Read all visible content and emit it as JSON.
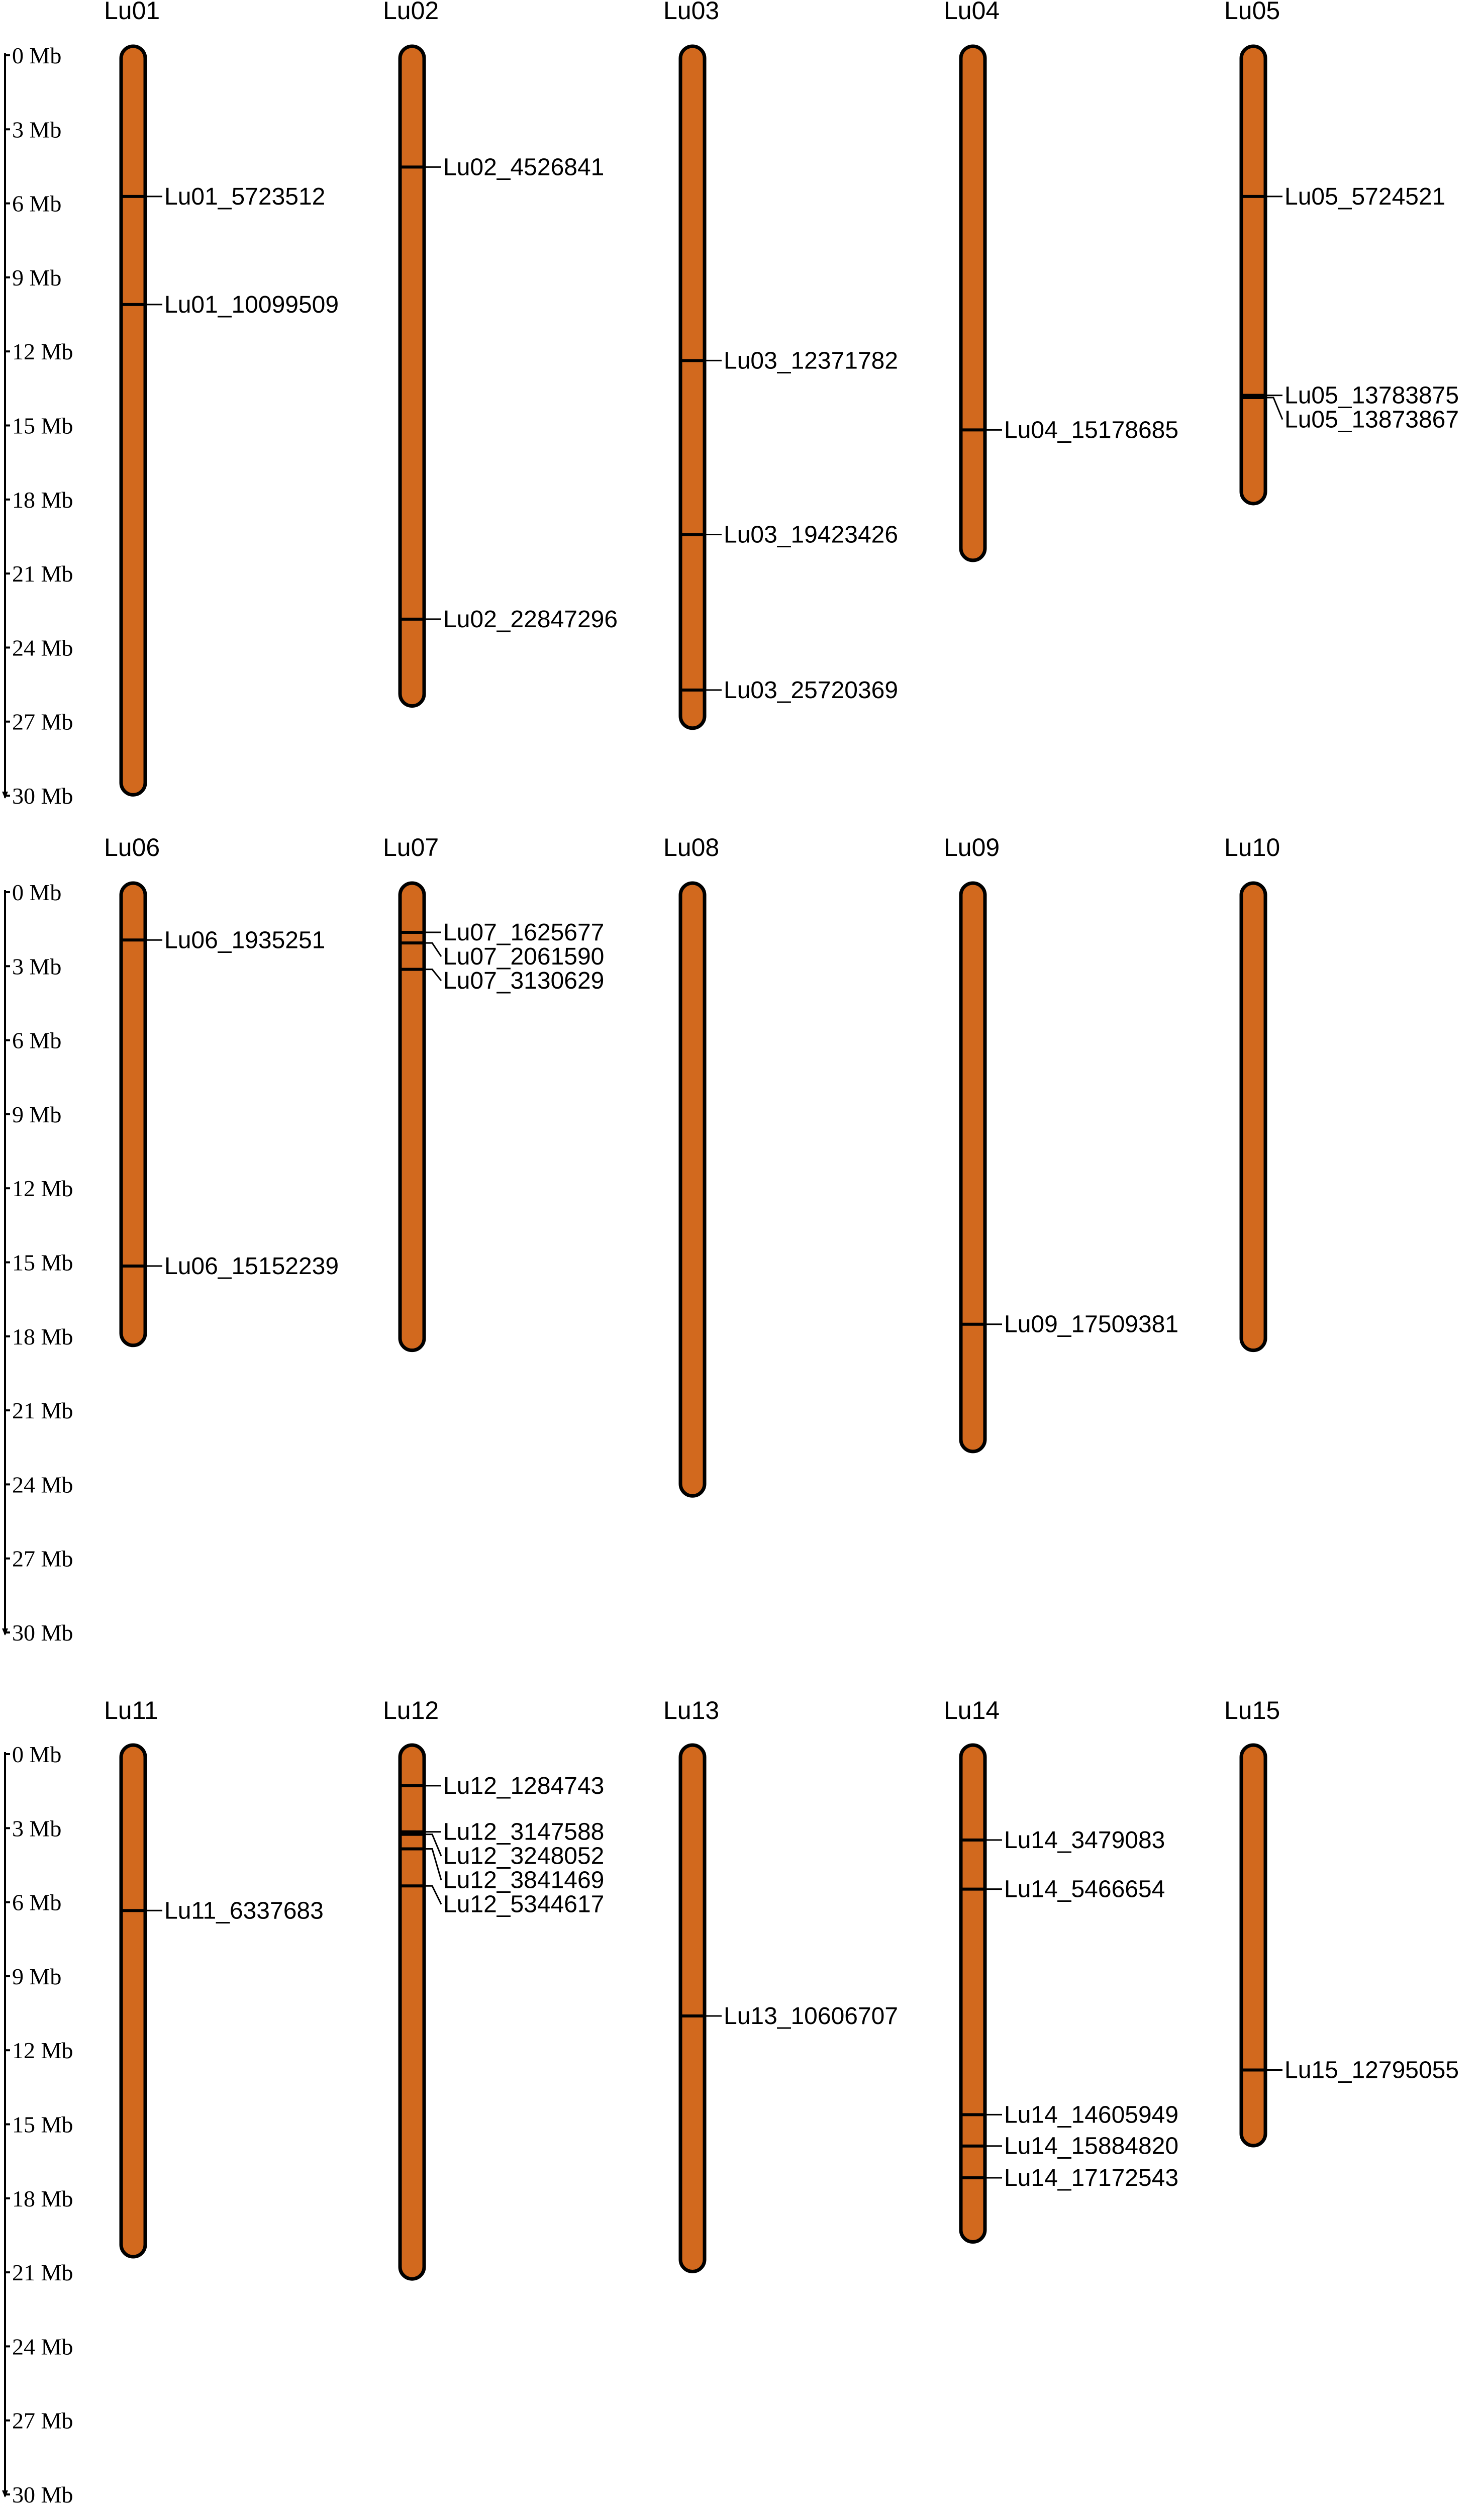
{
  "colors": {
    "chromosome_fill": "#D2691E",
    "outline": "#000000",
    "background": "#ffffff"
  },
  "axis": {
    "unit": "Mb",
    "max_mb": 30,
    "ticks_mb": [
      0,
      3,
      6,
      9,
      12,
      15,
      18,
      21,
      24,
      27,
      30
    ],
    "tick_labels": [
      "0 Mb",
      "3 Mb",
      "6 Mb",
      "9 Mb",
      "12 Mb",
      "15 Mb",
      "18 Mb",
      "21 Mb",
      "24 Mb",
      "27 Mb",
      "30 Mb"
    ]
  },
  "rows": [
    {
      "chromosomes": [
        {
          "name": "Lu01",
          "length_mb": 29.6,
          "genes": [
            {
              "label": "Lu01_5723512",
              "pos_mb": 5.72
            },
            {
              "label": "Lu01_10099509",
              "pos_mb": 10.1
            }
          ]
        },
        {
          "name": "Lu02",
          "length_mb": 26.0,
          "genes": [
            {
              "label": "Lu02_4526841",
              "pos_mb": 4.53
            },
            {
              "label": "Lu02_22847296",
              "pos_mb": 22.85
            }
          ]
        },
        {
          "name": "Lu03",
          "length_mb": 26.9,
          "genes": [
            {
              "label": "Lu03_12371782",
              "pos_mb": 12.37
            },
            {
              "label": "Lu03_19423426",
              "pos_mb": 19.42
            },
            {
              "label": "Lu03_25720369",
              "pos_mb": 25.72
            }
          ]
        },
        {
          "name": "Lu04",
          "length_mb": 20.1,
          "genes": [
            {
              "label": "Lu04_15178685",
              "pos_mb": 15.18
            }
          ]
        },
        {
          "name": "Lu05",
          "length_mb": 17.8,
          "genes": [
            {
              "label": "Lu05_5724521",
              "pos_mb": 5.72
            },
            {
              "label": "Lu05_13783875",
              "pos_mb": 13.78
            },
            {
              "label": "Lu05_13873867",
              "pos_mb": 13.87
            }
          ]
        }
      ]
    },
    {
      "chromosomes": [
        {
          "name": "Lu06",
          "length_mb": 18.0,
          "genes": [
            {
              "label": "Lu06_1935251",
              "pos_mb": 1.94
            },
            {
              "label": "Lu06_15152239",
              "pos_mb": 15.15
            }
          ]
        },
        {
          "name": "Lu07",
          "length_mb": 18.2,
          "genes": [
            {
              "label": "Lu07_1625677",
              "pos_mb": 1.63
            },
            {
              "label": "Lu07_2061590",
              "pos_mb": 2.06
            },
            {
              "label": "Lu07_3130629",
              "pos_mb": 3.13
            }
          ]
        },
        {
          "name": "Lu08",
          "length_mb": 24.1,
          "genes": []
        },
        {
          "name": "Lu09",
          "length_mb": 22.3,
          "genes": [
            {
              "label": "Lu09_17509381",
              "pos_mb": 17.51
            }
          ]
        },
        {
          "name": "Lu10",
          "length_mb": 18.2,
          "genes": []
        }
      ]
    },
    {
      "chromosomes": [
        {
          "name": "Lu11",
          "length_mb": 20.0,
          "genes": [
            {
              "label": "Lu11_6337683",
              "pos_mb": 6.34
            }
          ]
        },
        {
          "name": "Lu12",
          "length_mb": 20.9,
          "genes": [
            {
              "label": "Lu12_1284743",
              "pos_mb": 1.28
            },
            {
              "label": "Lu12_3147588",
              "pos_mb": 3.15
            },
            {
              "label": "Lu12_3248052",
              "pos_mb": 3.25
            },
            {
              "label": "Lu12_3841469",
              "pos_mb": 3.84
            },
            {
              "label": "Lu12_5344617",
              "pos_mb": 5.34
            }
          ]
        },
        {
          "name": "Lu13",
          "length_mb": 20.6,
          "genes": [
            {
              "label": "Lu13_10606707",
              "pos_mb": 10.61
            }
          ]
        },
        {
          "name": "Lu14",
          "length_mb": 19.4,
          "genes": [
            {
              "label": "Lu14_3479083",
              "pos_mb": 3.48
            },
            {
              "label": "Lu14_5466654",
              "pos_mb": 5.47
            },
            {
              "label": "Lu14_14605949",
              "pos_mb": 14.61
            },
            {
              "label": "Lu14_15884820",
              "pos_mb": 15.88
            },
            {
              "label": "Lu14_17172543",
              "pos_mb": 17.17
            }
          ]
        },
        {
          "name": "Lu15",
          "length_mb": 15.5,
          "genes": [
            {
              "label": "Lu15_12795055",
              "pos_mb": 12.8
            }
          ]
        }
      ]
    }
  ]
}
